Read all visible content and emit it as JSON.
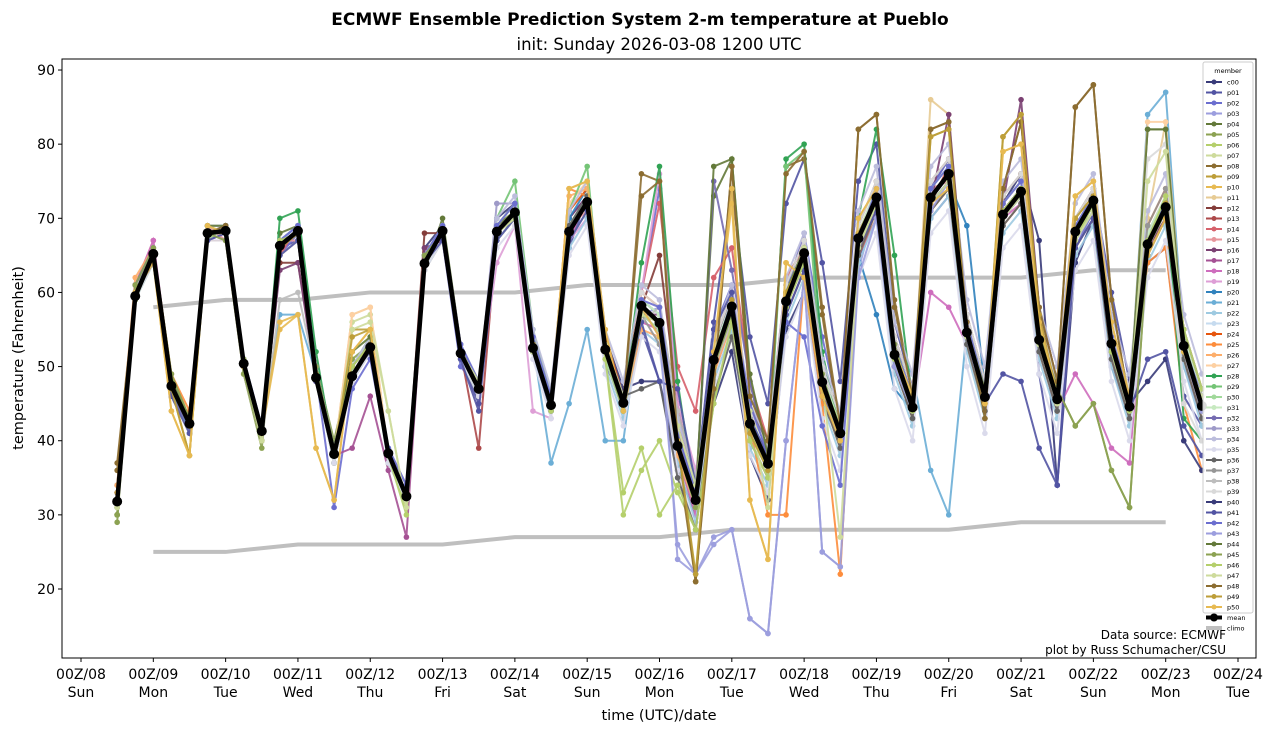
{
  "chart_data": {
    "type": "line",
    "title": "ECMWF Ensemble Prediction System 2-m temperature at Pueblo",
    "subtitle": "init: Sunday 2026-03-08 1200 UTC",
    "xlabel": "time (UTC)/date",
    "ylabel": "temperature (Fahrenheit)",
    "ylim": [
      11,
      91.5
    ],
    "xlim": [
      "2026-03-07T21:00Z",
      "2026-03-24T06:00Z"
    ],
    "yticks": [
      20,
      30,
      40,
      50,
      60,
      70,
      80,
      90
    ],
    "xticks": [
      {
        "label": "00Z/08",
        "day": "Sun",
        "date": "2026-03-08T00:00Z"
      },
      {
        "label": "00Z/09",
        "day": "Mon",
        "date": "2026-03-09T00:00Z"
      },
      {
        "label": "00Z/10",
        "day": "Tue",
        "date": "2026-03-10T00:00Z"
      },
      {
        "label": "00Z/11",
        "day": "Wed",
        "date": "2026-03-11T00:00Z"
      },
      {
        "label": "00Z/12",
        "day": "Thu",
        "date": "2026-03-12T00:00Z"
      },
      {
        "label": "00Z/13",
        "day": "Fri",
        "date": "2026-03-13T00:00Z"
      },
      {
        "label": "00Z/14",
        "day": "Sat",
        "date": "2026-03-14T00:00Z"
      },
      {
        "label": "00Z/15",
        "day": "Sun",
        "date": "2026-03-15T00:00Z"
      },
      {
        "label": "00Z/16",
        "day": "Mon",
        "date": "2026-03-16T00:00Z"
      },
      {
        "label": "00Z/17",
        "day": "Tue",
        "date": "2026-03-17T00:00Z"
      },
      {
        "label": "00Z/18",
        "day": "Wed",
        "date": "2026-03-18T00:00Z"
      },
      {
        "label": "00Z/19",
        "day": "Thu",
        "date": "2026-03-19T00:00Z"
      },
      {
        "label": "00Z/20",
        "day": "Fri",
        "date": "2026-03-20T00:00Z"
      },
      {
        "label": "00Z/21",
        "day": "Sat",
        "date": "2026-03-21T00:00Z"
      },
      {
        "label": "00Z/22",
        "day": "Sun",
        "date": "2026-03-22T00:00Z"
      },
      {
        "label": "00Z/23",
        "day": "Mon",
        "date": "2026-03-23T00:00Z"
      },
      {
        "label": "00Z/24",
        "day": "Tue",
        "date": "2026-03-24T00:00Z"
      }
    ],
    "x_start": "2026-03-08T12:00Z",
    "x_step_hours": 6,
    "grid": false,
    "legend": {
      "title": "member",
      "placement": "top-right"
    },
    "mean": {
      "name": "mean",
      "color": "#000000",
      "values": [
        31.8,
        59.5,
        65.2,
        47.4,
        42.3,
        68.0,
        68.3,
        50.4,
        41.3,
        66.3,
        68.3,
        48.5,
        38.2,
        48.7,
        52.6,
        38.3,
        32.5,
        63.9,
        68.3,
        51.8,
        47.0,
        68.2,
        70.8,
        52.5,
        44.8,
        68.2,
        72.2,
        52.3,
        45.1,
        58.2,
        55.9,
        39.3,
        32.0,
        50.9,
        58.1,
        42.3,
        36.9,
        58.8,
        65.3,
        47.9,
        41.0,
        67.3,
        72.8,
        51.6,
        44.5,
        72.8,
        76.0,
        54.6,
        45.9,
        70.5,
        73.6,
        53.6,
        45.6,
        68.2,
        72.4,
        53.1,
        44.6,
        66.5,
        71.5,
        52.8,
        44.7
      ]
    },
    "climo": {
      "name": "climo",
      "color": "#bfbfbf",
      "dates": [
        "2026-03-09",
        "2026-03-10",
        "2026-03-11",
        "2026-03-12",
        "2026-03-13",
        "2026-03-14",
        "2026-03-15",
        "2026-03-16",
        "2026-03-17",
        "2026-03-18",
        "2026-03-19",
        "2026-03-20",
        "2026-03-21",
        "2026-03-22",
        "2026-03-23"
      ],
      "high": [
        58,
        59,
        59,
        60,
        60,
        60,
        61,
        61,
        61,
        62,
        62,
        62,
        62,
        63,
        63
      ],
      "low": [
        25,
        25,
        26,
        26,
        26,
        27,
        27,
        27,
        28,
        28,
        28,
        28,
        29,
        29,
        29
      ]
    },
    "members": [
      {
        "name": "c00",
        "color": "#393b79",
        "values": "33|61 66 46 41|69 69 51 40|67 69 50 37|50 54 37 32|66 69 52 46|70 72 54 46|70 73 54 47|48 48 36 30|45 52 38 32|55 60 45 40|64 72 50 43|74 78 56 44|72 76 67 34|64 70 50 43|65 73 55 46"
      },
      {
        "name": "p01",
        "color": "#5254a3",
        "values": "34|60 65 48 43|68 68 49 42|66 67 48 38|48 52 39 34|65 68 51 45|67 70 52 44|66 73 50 46|55 48 38 34|56 74 54 45|72 78 64 48|75 80 56 47|70 73 55 47|72 75 49 34|70 74 60 48|64 66 46 42"
      },
      {
        "name": "p02",
        "color": "#6b6ecf",
        "values": "31|59 66 47 42|67 68 50 42|65 68 49 31|47 51 38 33|63 67 50 47|67 70 53 46|69 72 52 44|60 74 45 30|55 61 40 35|60 68 54 43|65 74 52 46|74 78 57 47|69 72 53 45|66 71 52 44|68 72 50 43"
      },
      {
        "name": "p03",
        "color": "#9c9ede",
        "values": "32|60 64 46 41|68 69 51 41|67 68 48 39|50 54 38 33|64 69 52 47|69 72 53 45|67 71 51 45|57 58 24 22|27 28 16 14|40 62 25 23|63 72 51 45|74 77 55 46|70 74 53 46|68 73 52 45|67 71 52 45"
      },
      {
        "name": "p04",
        "color": "#637939",
        "values": "30|60 66 48 42|69 69 50 41|68 69 49 38|49 53 39 32|63 70 53 47|69 71 52 44|68 73 53 45|59 57 40 33|73 78 48 38|60 66 47 41|68 73 52 44|72 77 54 46|71 74 53 45|68 72 54 45|82 82 53 46"
      },
      {
        "name": "p05",
        "color": "#8ca252",
        "values": "29|61 66 49 43|68 67 49 39|65 67 50 40|51 53 37 33|65 68 52 46|68 70 52 45|69 72 52 44|58 56 38 30|50 57 42 36|58 66 49 41|67 73 53 45|73 76 55 47|71 73 55 47|42 45 36 31|66 71 52 45"
      },
      {
        "name": "p06",
        "color": "#b5cf6b",
        "values": "30|59 65 47 42|68 68 51 41|67 68 48 37|50 53 38 31|64 68 52 47|68 71 53 44|68 72 51 30|36 40 33 28|45 55 40 35|58 64 48 42|66 72 51 44|73 76 55 45|71 74 53 46|67 72 52 44|67 73 55 47"
      },
      {
        "name": "p07",
        "color": "#cedb9c",
        "values": "31|60 65 47 42|68 68 50 40|66 68 49 38|56 57 44 31|64 68 52 48|68 70 52 45|68 72 53 46|57 56 42 34|52 58 44 37|59 66 48 41|66 72 52 46|72 75 54 46|70 73 53 45|67 71 53 45|66 72 52 46"
      },
      {
        "name": "p08",
        "color": "#8c6d31",
        "values": "37|60 65 47 42|68 69 50 41|66 68 49 38|49 53 38 33|64 68 52 47|68 71 53 45|68 72 52 45|76 75 38 21|48 77 45 39|77 78 57 41|82 84 59 46|82 83 56 43|74 83 58 48|85 88 59 45|66 72 53 45"
      },
      {
        "name": "p09",
        "color": "#bd9e39",
        "values": "32|60 65 47 38|68 68 50 41|66 68 49 38|55 55 38 33|64 68 52 47|68 71 53 45|68 72 52 45|58 56 40 21|50 59 41 36|60 65 47 41|68 73 52 45|81 82 55 45|81 84 57 46|70 73 53 45|66 72 53 45"
      },
      {
        "name": "p10",
        "color": "#e7ba52",
        "values": "33|60 64 44 38|69 68 50 41|55 57 39 32|52 55 38 33|64 68 52 47|68 71 53 45|74 75 55 44|58 54 40 32|52 72 32 24|64 62 46 40|70 74 52 46|72 74 55 45|79 80 56 46|73 75 56 46|65 70 52 45"
      },
      {
        "name": "p11",
        "color": "#e7cb94",
        "values": "34|60 65 47 42|69 69 50 42|66 68 49 38|57 58 38 33|64 68 52 47|68 71 53 45|68 72 52 45|58 56 40 32|51 58 42 37|59 65 48 41|67 73 52 45|86 84 55 46|71 74 54 46|68 72 53 45|70 83 53 45"
      },
      {
        "name": "p12",
        "color": "#843c39",
        "values": "32|60 65 47 42|68 68 50 41|64 64 49 38|49 53 38 33|68 68 52 47|68 71 53 45|68 72 52 45|58 65 45 33|52 58 42 37|59 65 48 41|67 73 52 45|73 76 55 46|71 74 54 46|68 72 53 45|67 72 53 45"
      },
      {
        "name": "p13",
        "color": "#ad494a",
        "values": "32|60 65 47 42|68 68 50 41|66 68 49 38|49 53 38 33|64 68 52 39|68 71 53 45|68 72 52 45|58 56 40 32|51 58 42 37|59 65 48 41|67 73 52 45|73 76 55 46|71 74 54 46|68 72 53 45|67 72 53 45"
      },
      {
        "name": "p14",
        "color": "#d6616b",
        "values": "33|59 66 48 43|67 69 51 40|65 69 50 37|48 52 39 34|63 67 51 46|69 72 54 44|67 73 53 46|60 72 50 44|62 66 48 40|62 66 49 42|65 70 54 47|72 77 56 44|72 75 55 47|69 73 54 46|66 70 51 44"
      },
      {
        "name": "p15",
        "color": "#e7969c",
        "values": "31|61 67 46 41|69 67 49 42|67 67 48 39|50 54 37 32|65 69 53 48|67 70 52 46|69 71 51 44|56 55 41 33|50 56 41 36|58 64 47 42|68 74 53 44|74 75 54 45|70 73 53 45|67 71 52 44|68 73 54 46"
      },
      {
        "name": "p16",
        "color": "#7b4173",
        "values": "32|60 64 47 43|68 68 50 41|63 64 48 39|49 52 38 33|66 67 51 46|69 72 54 46|70 73 53 46|57 57 42 35|53 59 43 38|60 66 49 42|66 72 51 44|72 84 56 47|72 86 58 48|67 71 52 44|66 70 52 44"
      },
      {
        "name": "p17",
        "color": "#a55194",
        "values": "33|60 65 47 42|68 69 51 41|66 68 49 38|39 46 36 27|64 68 52 47|67 70 52 44|68 72 52 45|58 56 40 32|51 58 42 37|59 65 48 41|67 73 52 45|73 76 55 46|71 74 54 46|68 72 53 45|67 72 53 45"
      },
      {
        "name": "p18",
        "color": "#ce6dbd",
        "values": "32|61 67 48 42|68 68 50 41|66 68 49 38|49 53 38 33|64 68 52 47|68 71 53 45|67 73 51 44|56 55 38 30|49 56 41 36|57 63 47 40|66 71 51 44|60 58 53 45|70 72 52 44|49 45 39 37|66 71 53 46"
      },
      {
        "name": "p19",
        "color": "#de9ed6",
        "values": "32|60 65 47 42|68 68 50 41|66 68 49 38|49 53 38 33|64 68 52 47|64 69 44 43|67 70 51 44|60 76 45 36|50 56 41 36|58 64 47 40|67 72 51 44|72 75 54 45|70 73 53 45|67 71 52 44|66 71 52 44"
      },
      {
        "name": "p20",
        "color": "#3182bd",
        "values": "32|60 66 47 41|68 69 51 41|67 69 50 38|49 53 38 33|64 68 52 47|68 71 53 45|70 74 54 46|59 57 41 33|52 59 41 36|60 66 48 41|65 57 47 44|72 75 69 47|70 73 53 45|68 72 53 45|67 72 53 45"
      },
      {
        "name": "p21",
        "color": "#6baed6",
        "values": "33|60 65 47 42|68 68 50 41|57 57 49 38|49 53 38 33|64 68 52 47|68 71 53 37|45 55 40 40|58 56 40 32|51 58 42 37|59 65 48 41|67 73 52 49|36 30 55 46|71 74 54 46|68 72 53 45|84 87 53 45"
      },
      {
        "name": "p22",
        "color": "#9ecae1",
        "values": "32|59 64 46 41|67 67 49 40|65 67 48 37|48 52 37 32|63 67 51 46|67 70 52 44|66 70 50 43|55 53 37 29|48 55 39 34|56 62 45 38|64 70 49 42|70 73 52 43|68 71 51 43|65 69 50 42|64 69 50 42"
      },
      {
        "name": "p23",
        "color": "#c6dbef",
        "values": "31|60 66 48 43|69 69 51 42|67 69 50 39|50 54 39 34|65 69 53 48|69 72 54 46|69 73 53 46|59 57 41 33|52 59 43 38|60 66 49 42|68 74 53 46|74 77 56 47|72 75 55 47|69 73 54 46|68 73 54 46"
      },
      {
        "name": "p24",
        "color": "#e6550d",
        "values": "32|60 65 47 42|68 68 50 41|66 68 49 38|49 53 38 33|64 68 52 47|68 71 53 45|71 74 54 46|60 58 42 34|53 60 44 39|61 67 50 43|69 75 54 47|75 78 57 48|73 76 56 48|70 74 55 47|69 74 55 47"
      },
      {
        "name": "p25",
        "color": "#fd8d3c",
        "values": "33|61 66 49 44|67 67 49 40|65 67 48 38|49 53 38 33|64 68 52 47|68 71 53 45|74 73 52 45|58 56 40 32|51 58 42 30|30 62 45 22|67 73 52 45|73 76 55 46|71 74 54 46|68 72 53 45|64 66 45 36"
      },
      {
        "name": "p26",
        "color": "#fdae6b",
        "values": "34|62 66 48 43|68 68 50 41|66 68 49 38|49 53 38 33|64 68 52 47|68 71 53 45|73 74 53 44|55 54 38 31|49 56 40 35|57 63 46 39|65 71 50 43|71 74 53 44|69 72 52 44|66 70 51 43|65 70 51 43"
      },
      {
        "name": "p27",
        "color": "#fdd0a2",
        "values": "32|60 65 47 42|68 68 50 41|66 68 49 38|57 58 38 33|64 68 52 47|68 71 53 45|72 75 52 45|58 56 40 32|51 58 42 37|59 65 48 41|67 73 52 45|73 76 55 46|71 74 54 46|68 72 53 45|83 83 53 45"
      },
      {
        "name": "p28",
        "color": "#31a354",
        "values": "32|60 65 47 42|68 68 50 41|70 71 52 38|49 53 38 33|64 68 52 47|68 71 53 45|68 72 52 45|64 77 48 32|51 58 42 37|78 80 52 41|70 82 65 45|73 76 55 46|71 74 54 46|68 72 53 45|67 72 43 40"
      },
      {
        "name": "p29",
        "color": "#74c476",
        "values": "32|60 65 47 42|68 68 50 41|66 68 49 38|49 53 38 33|64 68 52 47|70 75 55 46|71 77 52 45|58 56 40 32|51 58 42 37|77 79 48 41|67 73 52 45|73 76 55 46|71 74 54 46|68 72 53 45|67 72 53 45"
      },
      {
        "name": "p30",
        "color": "#a1d99b",
        "values": "31|59 64 46 41|67 69 51 40|67 69 50 37|50 54 37 32|65 69 51 46|69 72 52 44|69 73 51 44|57 55 39 31|50 57 41 36|58 64 47 40|66 72 51 44|72 75 54 45|70 73 53 45|67 71 52 44|66 71 52 44"
      },
      {
        "name": "p31",
        "color": "#c7e9c0",
        "values": "30|59 65 48 43|69 68 49 42|65 67 50 39|48 52 39 34|63 67 53 48|67 70 54 46|67 71 53 46|59 57 41 33|52 59 43 38|60 66 49 42|68 74 53 46|74 77 56 47|72 75 55 47|69 73 54 46|68 73 54 46"
      },
      {
        "name": "p32",
        "color": "#756bb1",
        "values": "33|61 66 46 42|68 68 50 41|66 68 49 38|49 53 38 33|64 68 52 47|68 71 53 45|68 72 52 45|58 56 40 32|75 63 48 37|59 65 48 41|67 73 52 45|73 76 55 46|71 74 54 46|68 72 53 45|67 72 53 45"
      },
      {
        "name": "p33",
        "color": "#9e9ac8",
        "values": "32|60 65 47 42|68 68 50 41|66 68 49 38|49 53 38 33|64 68 52 47|72 72 53 45|68 72 52 45|58 56 40 32|51 58 42 37|59 65 48 41|67 73 52 45|73 76 55 46|71 74 54 46|68 72 53 45|67 72 53 45"
      },
      {
        "name": "p34",
        "color": "#bcbddc",
        "values": "32|60 66 48 43|69 69 51 42|67 69 50 39|50 54 39 34|65 69 53 48|70 73 55 47|71 75 55 48|61 59 43 35|54 61 45 40|62 68 51 44|71 77 56 49|77 80 59 50|75 78 58 50|72 76 57 49|71 76 57 49"
      },
      {
        "name": "p35",
        "color": "#dadaeb",
        "values": "31|59 64 46 41|67 67 49 40|65 67 48 37|48 52 37 32|63 67 51 46|66 69 51 43|65 69 49 42|54 52 36 28|47 54 38 33|54 60 43 36|62 68 47 40|68 71 50 41|66 69 49 41|63 67 48 40|62 67 48 40"
      },
      {
        "name": "p36",
        "color": "#636363",
        "values": "32|60 65 47 42|68 68 50 41|66 68 49 38|49 53 38 33|64 68 52 47|68 71 53 45|69 73 53 46|47 48 35 28|46 54 40 35|57 63 46 39|65 71 50 43|71 74 53 44|69 72 52 44|66 70 51 43|65 70 51 43"
      },
      {
        "name": "p37",
        "color": "#969696",
        "values": "33|61 65 47 42|68 68 50 41|66 68 49 38|49 53 38 33|64 68 52 47|68 71 53 45|68 72 52 45|57 53 41 33|53 60 44 39|61 67 50 43|69 75 54 47|75 78 57 48|73 76 56 48|70 74 55 47|69 74 55 47"
      },
      {
        "name": "p38",
        "color": "#bdbdbd",
        "values": "32|59 65 47 42|68 67 49 40|59 60 49 38|49 53 38 33|64 68 52 47|68 71 53 45|68 72 52 45|56 58 44 35|50 56 40 35|58 64 47 40|66 72 51 44|72 75 54 45|70 73 53 45|67 71 52 44|66 71 52 44"
      },
      {
        "name": "p39",
        "color": "#d9d9d9",
        "values": "32|60 65 47 42|68 68 50 41|66 68 49 38|49 53 38 33|64 68 52 47|68 71 53 45|68 72 52 45|60 58 42 34|53 60 44 39|61 67 50 43|69 75 54 47|75 78 57 48|73 76 56 48|70 74 55 47|78 80 45 40"
      },
      {
        "name": "p40",
        "color": "#393b79",
        "values": "32|60 65 47 42|68 68 50 41|66 68 49 38|49 53 38 33|64 68 52 47|68 71 53 45|68 72 52 45|58 56 40 32|51 58 42 37|59 65 48 41|67 73 52 45|73 76 55 46|71 74 54 46|68 72 53 45|48 51 40 36"
      },
      {
        "name": "p41",
        "color": "#5254a3",
        "values": "33|60 64 46 41|67 68 50 41|65 67 48 38|49 52 38 33|64 67 51 44|67 70 52 44|67 71 52 45|56 48 47 34|55 60 43 38|57 63 46 42|66 71 52 46|72 75 54 45|49 48 39 34|66 70 52 44|51 52 42 38"
      },
      {
        "name": "p42",
        "color": "#6b6ecf",
        "values": "32|61 66 48 43|68 69 51 42|67 69 50 39|50 53 39 34|65 69 53 48|69 72 54 46|68 72 53 46|59 58 41 33|51 59 45 38|56 54 42 34|67 74 53 46|74 77 56 47|72 75 55 47|69 73 54 46|67 72 53 46"
      },
      {
        "name": "p43",
        "color": "#9c9ede",
        "values": "31|60 65 47 42|68 68 50 41|66 68 49 38|49 53 38 33|64 68 52 47|68 71 53 45|68 72 52 45|58 54 26 22|26 28 16 14|40 62 25 23|62 70 50 44|71 75 54 45|70 73 53 45|67 71 52 44|66 71 52 44"
      },
      {
        "name": "p44",
        "color": "#637939",
        "values": "30|59 65 48 43|69 69 50 41|66 68 49 38|52 54 38 33|64 68 52 47|68 71 53 45|68 72 52 45|58 56 40 32|77 78 49 38|60 66 48 41|67 73 52 45|73 76 55 46|71 74 54 46|68 72 53 45|82 82 53 45"
      },
      {
        "name": "p45",
        "color": "#8ca252",
        "values": "30|61 66 49 43|68 67 49 40|66 68 50 39|50 53 38 33|65 68 52 47|68 70 52 45|68 72 52 44|57 56 39 31|50 57 42 37|58 66 49 41|67 73 53 45|73 76 55 47|71 73 55 47|42 45 36 31|66 71 52 45"
      },
      {
        "name": "p46",
        "color": "#b5cf6b",
        "values": "31|60 65 47 42|68 68 51 41|67 68 49 38|50 53 38 30|64 68 52 47|68 71 53 44|68 72 51 33|39 30 34 28|45 56 40 35|58 64 48 42|66 72 51 44|73 76 55 45|71 74 53 46|67 72 52 44|67 73 55 47"
      },
      {
        "name": "p47",
        "color": "#cedb9c",
        "values": "31|60 65 47 42|68 68 50 40|66 68 49 38|55 56 44 31|64 68 52 48|68 70 52 45|68 72 53 46|57 56 42 34|52 58 44 31|59 66 48 27|66 72 52 46|72 75 54 46|70 73 53 45|67 71 53 45|75 79 52 46"
      },
      {
        "name": "p48",
        "color": "#8c6d31",
        "values": "36|60 65 47 42|68 69 50 41|66 68 49 38|49 53 38 33|64 68 52 47|68 71 53 45|68 72 52 45|73 75 40 21|47 77 46 40|76 79 58 42|82 84 58 46|82 83 56 43|74 83 58 48|85 88 59 45|66 72 53 45"
      },
      {
        "name": "p49",
        "color": "#bd9e39",
        "values": "32|60 65 47 38|68 68 50 41|66 68 49 38|54 55 38 33|64 68 52 47|68 71 53 45|68 72 52 45|58 56 40 22|50 59 41 36|60 65 47 41|68 73 52 45|81 82 55 45|81 84 57 46|70 73 53 45|66 72 53 45"
      },
      {
        "name": "p50",
        "color": "#e7ba52",
        "values": "33|60 64 44 38|69 68 50 41|56 57 39 32|52 55 38 33|64 68 52 47|68 71 53 45|74 75 55 44|58 54 40 32|52 74 32 24|64 62 46 40|70 74 52 46|72 74 55 45|79 80 56 46|73 75 56 46|65 70 52 45"
      }
    ]
  },
  "annotations": {
    "source": "Data source: ECMWF",
    "credit": "plot by Russ Schumacher/CSU"
  }
}
